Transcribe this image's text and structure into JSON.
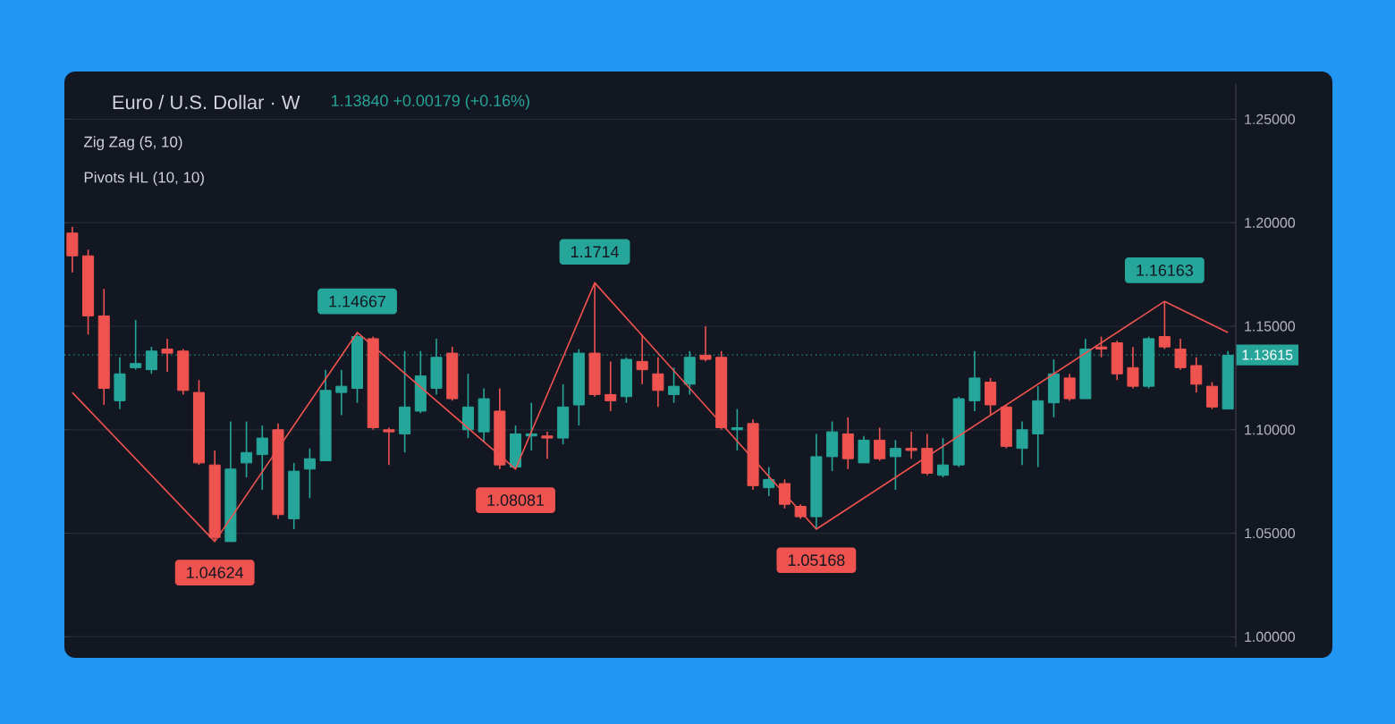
{
  "chart_data": {
    "type": "candlestick",
    "title": "Euro / U.S. Dollar · W",
    "subtitle": "1.13840  +0.00179 (+0.16%)",
    "categories": [
      null,
      null,
      null,
      null,
      null,
      null,
      null,
      null,
      null,
      null,
      null,
      null,
      null,
      null,
      null,
      null,
      null,
      null,
      null,
      null,
      null,
      null,
      null,
      null,
      null,
      null,
      null,
      null,
      null,
      null,
      null,
      null,
      null,
      null,
      null,
      null,
      null,
      null,
      null,
      null,
      null,
      null,
      null,
      null,
      null,
      null,
      null,
      null,
      null,
      null,
      null,
      null,
      null,
      null,
      null,
      null,
      null,
      null,
      null,
      null,
      null,
      null,
      null,
      null,
      null,
      null,
      null,
      null,
      null,
      null,
      null,
      null,
      null,
      null
    ],
    "ohlc": [
      [
        1.195,
        1.198,
        1.176,
        1.184
      ],
      [
        1.184,
        1.187,
        1.146,
        1.155
      ],
      [
        1.155,
        1.168,
        1.112,
        1.12
      ],
      [
        1.114,
        1.135,
        1.11,
        1.127
      ],
      [
        1.13,
        1.153,
        1.129,
        1.132
      ],
      [
        1.129,
        1.14,
        1.127,
        1.138
      ],
      [
        1.139,
        1.144,
        1.128,
        1.137
      ],
      [
        1.138,
        1.139,
        1.117,
        1.119
      ],
      [
        1.118,
        1.124,
        1.083,
        1.084
      ],
      [
        1.083,
        1.09,
        1.046,
        1.048
      ],
      [
        1.046,
        1.104,
        1.046,
        1.081
      ],
      [
        1.084,
        1.104,
        1.077,
        1.089
      ],
      [
        1.088,
        1.102,
        1.071,
        1.096
      ],
      [
        1.1,
        1.103,
        1.057,
        1.059
      ],
      [
        1.057,
        1.084,
        1.052,
        1.08
      ],
      [
        1.081,
        1.091,
        1.067,
        1.086
      ],
      [
        1.085,
        1.129,
        1.085,
        1.119
      ],
      [
        1.118,
        1.129,
        1.107,
        1.121
      ],
      [
        1.12,
        1.147,
        1.113,
        1.145
      ],
      [
        1.144,
        1.145,
        1.1,
        1.101
      ],
      [
        1.1,
        1.101,
        1.083,
        1.099
      ],
      [
        1.098,
        1.138,
        1.089,
        1.111
      ],
      [
        1.109,
        1.138,
        1.108,
        1.126
      ],
      [
        1.12,
        1.144,
        1.117,
        1.135
      ],
      [
        1.137,
        1.14,
        1.114,
        1.115
      ],
      [
        1.1,
        1.127,
        1.096,
        1.111
      ],
      [
        1.099,
        1.12,
        1.094,
        1.115
      ],
      [
        1.109,
        1.12,
        1.081,
        1.083
      ],
      [
        1.082,
        1.102,
        1.081,
        1.098
      ],
      [
        1.097,
        1.113,
        1.09,
        1.098
      ],
      [
        1.097,
        1.099,
        1.086,
        1.096
      ],
      [
        1.096,
        1.122,
        1.093,
        1.111
      ],
      [
        1.112,
        1.139,
        1.102,
        1.137
      ],
      [
        1.137,
        1.171,
        1.116,
        1.117
      ],
      [
        1.117,
        1.133,
        1.109,
        1.114
      ],
      [
        1.116,
        1.135,
        1.113,
        1.134
      ],
      [
        1.133,
        1.146,
        1.122,
        1.129
      ],
      [
        1.127,
        1.135,
        1.111,
        1.119
      ],
      [
        1.117,
        1.13,
        1.113,
        1.121
      ],
      [
        1.122,
        1.138,
        1.117,
        1.135
      ],
      [
        1.136,
        1.15,
        1.133,
        1.134
      ],
      [
        1.135,
        1.138,
        1.1,
        1.101
      ],
      [
        1.1,
        1.11,
        1.09,
        1.101
      ],
      [
        1.103,
        1.105,
        1.071,
        1.073
      ],
      [
        1.072,
        1.082,
        1.068,
        1.076
      ],
      [
        1.074,
        1.076,
        1.062,
        1.064
      ],
      [
        1.063,
        1.064,
        1.057,
        1.058
      ],
      [
        1.058,
        1.098,
        1.052,
        1.087
      ],
      [
        1.087,
        1.104,
        1.08,
        1.099
      ],
      [
        1.098,
        1.106,
        1.081,
        1.086
      ],
      [
        1.084,
        1.097,
        1.084,
        1.095
      ],
      [
        1.095,
        1.101,
        1.085,
        1.086
      ],
      [
        1.087,
        1.095,
        1.071,
        1.091
      ],
      [
        1.091,
        1.099,
        1.086,
        1.09
      ],
      [
        1.091,
        1.098,
        1.078,
        1.079
      ],
      [
        1.078,
        1.096,
        1.077,
        1.083
      ],
      [
        1.083,
        1.116,
        1.082,
        1.115
      ],
      [
        1.114,
        1.138,
        1.109,
        1.125
      ],
      [
        1.123,
        1.125,
        1.107,
        1.112
      ],
      [
        1.111,
        1.112,
        1.091,
        1.092
      ],
      [
        1.091,
        1.104,
        1.083,
        1.1
      ],
      [
        1.098,
        1.121,
        1.082,
        1.114
      ],
      [
        1.113,
        1.134,
        1.106,
        1.127
      ],
      [
        1.125,
        1.127,
        1.114,
        1.115
      ],
      [
        1.115,
        1.144,
        1.115,
        1.139
      ],
      [
        1.14,
        1.145,
        1.135,
        1.139
      ],
      [
        1.142,
        1.143,
        1.124,
        1.127
      ],
      [
        1.13,
        1.14,
        1.12,
        1.121
      ],
      [
        1.121,
        1.145,
        1.12,
        1.144
      ],
      [
        1.145,
        1.162,
        1.139,
        1.14
      ],
      [
        1.139,
        1.144,
        1.129,
        1.13
      ],
      [
        1.131,
        1.135,
        1.118,
        1.122
      ],
      [
        1.121,
        1.123,
        1.11,
        1.111
      ],
      [
        1.11,
        1.138,
        1.11,
        1.136
      ]
    ],
    "colors": [
      "#ef5350",
      "#ef5350",
      "#ef5350",
      "#26a69a",
      "#26a69a",
      "#26a69a",
      "#ef5350",
      "#ef5350",
      "#ef5350",
      "#ef5350",
      "#26a69a",
      "#26a69a",
      "#26a69a",
      "#ef5350",
      "#26a69a",
      "#26a69a",
      "#26a69a",
      "#26a69a",
      "#26a69a",
      "#ef5350",
      "#ef5350",
      "#26a69a",
      "#26a69a",
      "#26a69a",
      "#ef5350",
      "#26a69a",
      "#26a69a",
      "#ef5350",
      "#26a69a",
      "#26a69a",
      "#ef5350",
      "#26a69a",
      "#26a69a",
      "#ef5350",
      "#ef5350",
      "#26a69a",
      "#ef5350",
      "#ef5350",
      "#26a69a",
      "#26a69a",
      "#ef5350",
      "#ef5350",
      "#26a69a",
      "#ef5350",
      "#26a69a",
      "#ef5350",
      "#ef5350",
      "#26a69a",
      "#26a69a",
      "#ef5350",
      "#26a69a",
      "#ef5350",
      "#26a69a",
      "#ef5350",
      "#ef5350",
      "#26a69a",
      "#26a69a",
      "#26a69a",
      "#ef5350",
      "#ef5350",
      "#26a69a",
      "#26a69a",
      "#26a69a",
      "#ef5350",
      "#26a69a",
      "#ef5350",
      "#ef5350",
      "#ef5350",
      "#26a69a",
      "#ef5350",
      "#ef5350",
      "#ef5350",
      "#ef5350",
      "#26a69a"
    ],
    "series": [
      {
        "type": "line",
        "color": "#ef5350",
        "values": [
          1.118,
          null,
          null,
          null,
          null,
          null,
          null,
          null,
          null,
          1.046,
          null,
          null,
          null,
          null,
          null,
          null,
          null,
          null,
          1.147,
          null,
          null,
          null,
          null,
          null,
          null,
          null,
          null,
          null,
          1.081,
          null,
          null,
          null,
          null,
          1.171,
          null,
          null,
          null,
          null,
          null,
          null,
          null,
          null,
          null,
          null,
          null,
          null,
          null,
          1.052,
          null,
          null,
          null,
          null,
          null,
          null,
          null,
          null,
          null,
          null,
          null,
          null,
          null,
          null,
          null,
          null,
          null,
          null,
          null,
          null,
          null,
          1.162,
          null,
          null,
          null,
          1.147
        ]
      }
    ],
    "ylim": [
      0.995,
      1.267
    ],
    "yticks": [
      {
        "value": 1.0,
        "label": "1.00000"
      },
      {
        "value": 1.05,
        "label": "1.05000"
      },
      {
        "value": 1.1,
        "label": "1.10000"
      },
      {
        "value": 1.15,
        "label": "1.15000"
      },
      {
        "value": 1.2,
        "label": "1.20000"
      },
      {
        "value": 1.25,
        "label": "1.25000"
      }
    ],
    "tick_labels": "y",
    "grid": "y",
    "marker": "none",
    "line_style": "solid",
    "ref_lines": [
      {
        "axis": "y",
        "value": 1.13615,
        "label": "1.13615",
        "color": "#26a69a",
        "line_style": "dotted"
      }
    ],
    "annotations": [
      "Zig Zag (5, 10)",
      "Pivots HL (10, 10)",
      {
        "text": "1.04624",
        "y": 1.046
      },
      {
        "text": "1.14667",
        "y": 1.147
      },
      {
        "text": "1.08081",
        "y": 1.081
      },
      {
        "text": "1.1714",
        "y": 1.171
      },
      {
        "text": "1.05168",
        "y": 1.052
      },
      {
        "text": "1.16163",
        "y": 1.162
      }
    ]
  }
}
